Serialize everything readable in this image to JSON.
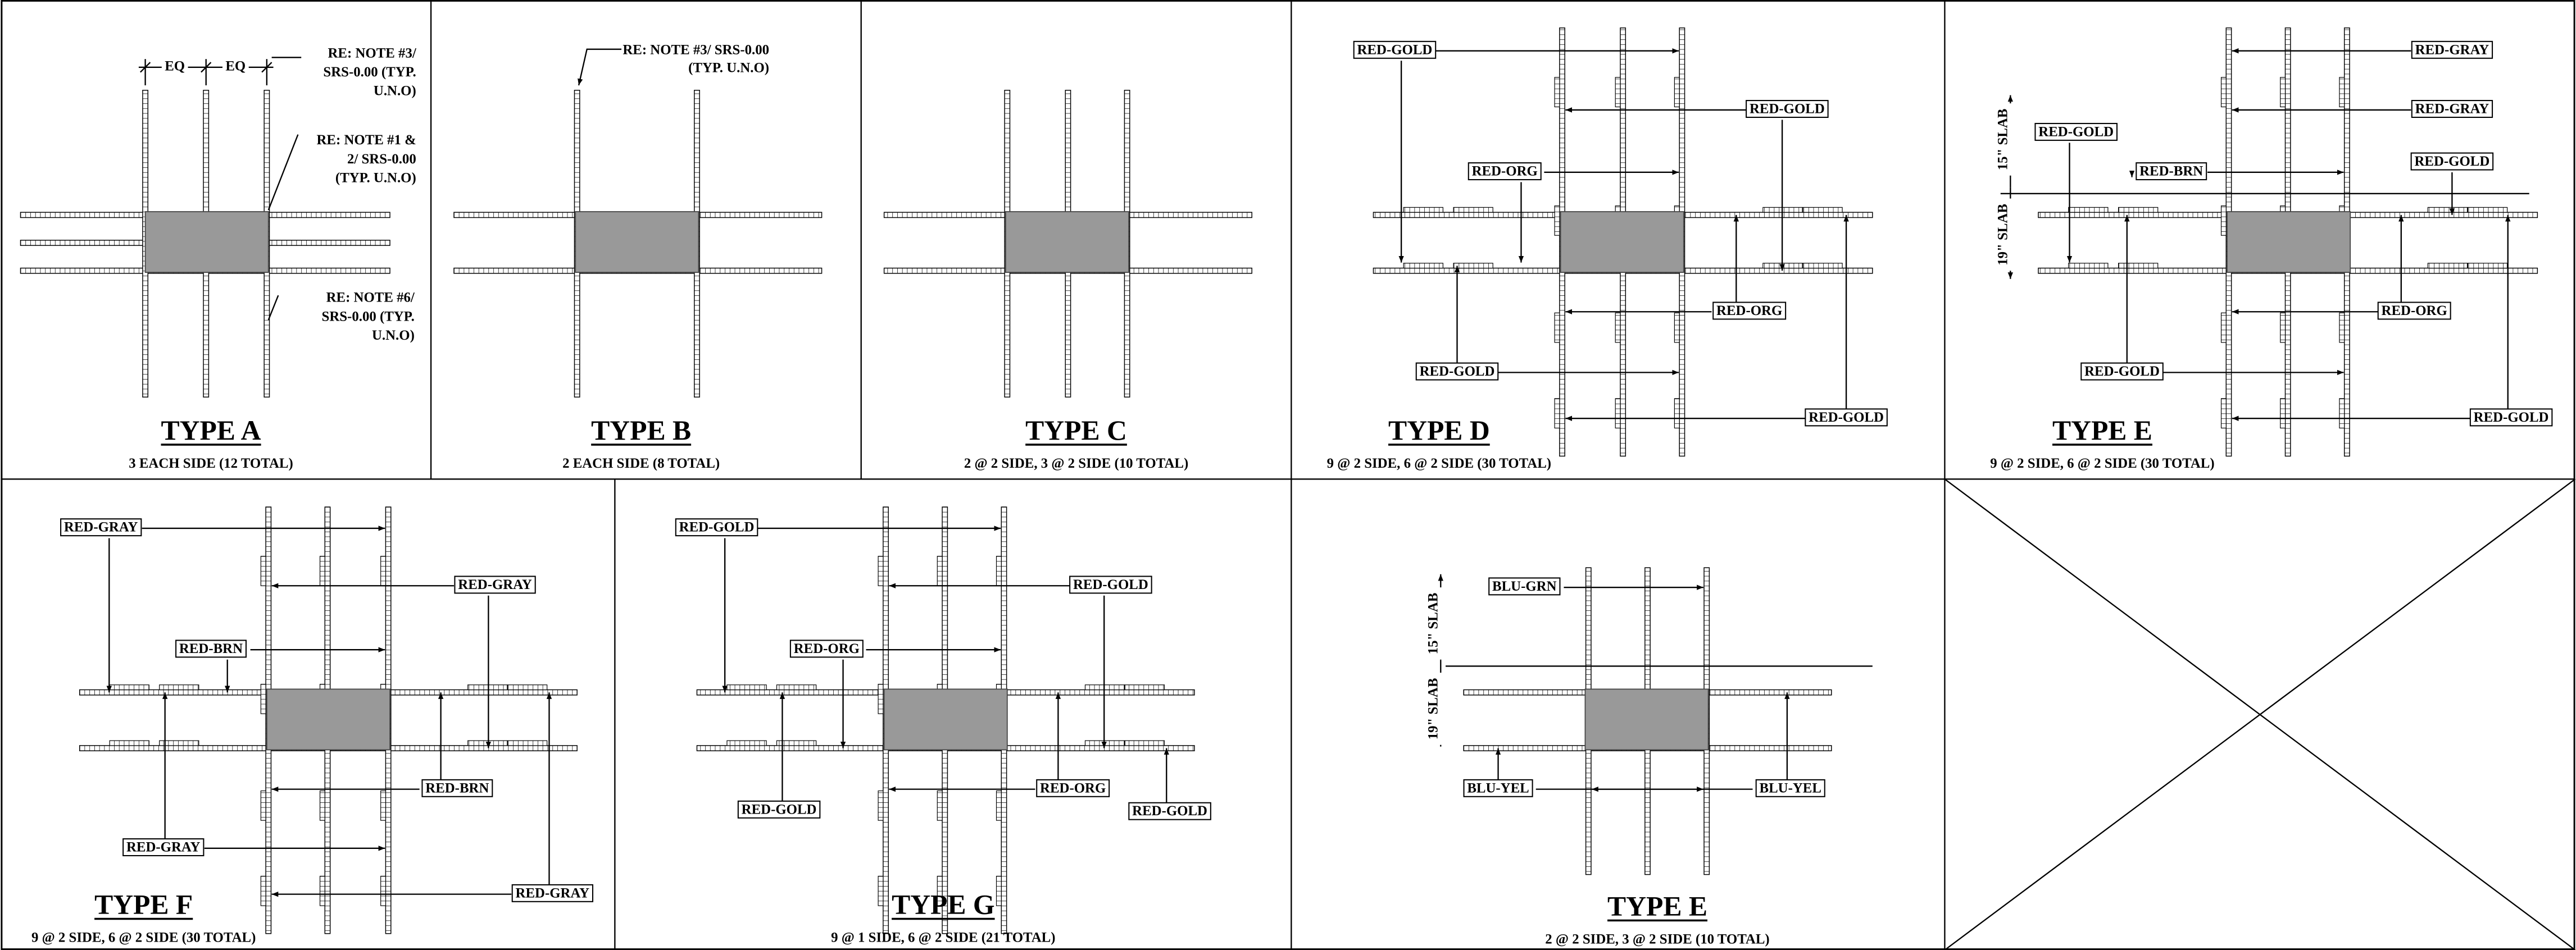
{
  "panels": [
    {
      "title": "TYPE A",
      "subtitle": "3 EACH SIDE (12 TOTAL)",
      "dims": [
        "EQ",
        "EQ"
      ],
      "notes": [
        [
          "RE: NOTE #3/",
          "SRS-0.00 (TYP.",
          "U.N.O)"
        ],
        [
          "RE: NOTE #1 &",
          "2/ SRS-0.00",
          "(TYP. U.N.O)"
        ],
        [
          "RE: NOTE #6/",
          "SRS-0.00 (TYP.",
          "U.N.O)"
        ]
      ]
    },
    {
      "title": "TYPE B",
      "subtitle": "2 EACH SIDE (8 TOTAL)",
      "notes": [
        [
          "RE: NOTE #3/ SRS-0.00",
          "(TYP. U.N.O)"
        ]
      ]
    },
    {
      "title": "TYPE C",
      "subtitle": "2 @ 2 SIDE, 3 @ 2 SIDE (10 TOTAL)"
    },
    {
      "title": "TYPE D",
      "subtitle": "9 @ 2 SIDE, 6 @ 2 SIDE (30 TOTAL)",
      "tags": [
        "RED-GOLD",
        "RED-GOLD",
        "RED-ORG",
        "RED-ORG",
        "RED-GOLD",
        "RED-GOLD"
      ]
    },
    {
      "title": "TYPE E",
      "subtitle": "9 @ 2 SIDE, 6 @ 2 SIDE (30 TOTAL)",
      "tags": [
        "RED-GRAY",
        "RED-GRAY",
        "RED-GOLD",
        "RED-BRN",
        "RED-GOLD",
        "RED-ORG",
        "RED-GOLD",
        "RED-GOLD"
      ],
      "slabs": [
        "15\" SLAB",
        "19\" SLAB"
      ]
    },
    {
      "title": "TYPE F",
      "subtitle": "9 @ 2 SIDE, 6 @ 2 SIDE (30 TOTAL)",
      "tags": [
        "RED-GRAY",
        "RED-GRAY",
        "RED-BRN",
        "RED-BRN",
        "RED-GRAY",
        "RED-GRAY"
      ]
    },
    {
      "title": "TYPE G",
      "subtitle": "9 @ 1 SIDE, 6 @ 2 SIDE (21 TOTAL)",
      "tags": [
        "RED-GOLD",
        "RED-GOLD",
        "RED-ORG",
        "RED-ORG",
        "RED-GOLD",
        "RED-GOLD"
      ]
    },
    {
      "title": "TYPE E",
      "subtitle": "2 @ 2 SIDE, 3 @ 2 SIDE (10 TOTAL)",
      "tags": [
        "BLU-GRN",
        "BLU-YEL",
        "BLU-YEL"
      ],
      "slabs": [
        "15\" SLAB",
        "19\" SLAB"
      ]
    }
  ]
}
